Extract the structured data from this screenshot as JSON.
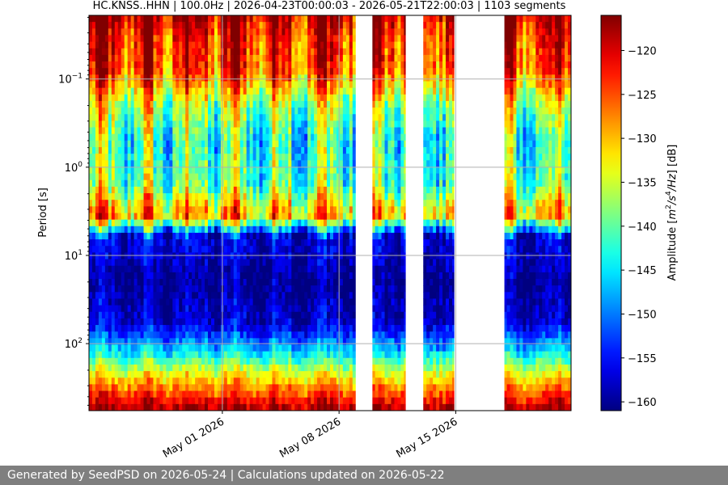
{
  "chart_data": {
    "type": "heatmap",
    "title": "HC.KNSS..HHN | 100.0Hz | 2026-04-23T00:00:03 - 2026-05-21T22:00:03 | 1103 segments",
    "xlabel": "",
    "ylabel": "Period [s]",
    "colorbar_label_parts": [
      "Amplitude [",
      "m",
      "2",
      "/s",
      "4",
      "/",
      "Hz",
      "] [dB]"
    ],
    "x_range": [
      "2026-04-23T00:00:03",
      "2026-05-21T22:00:03"
    ],
    "x_ticks": [
      "May 01 2026",
      "May 08 2026",
      "May 15 2026"
    ],
    "x_tick_dates": [
      "2026-05-01",
      "2026-05-08",
      "2026-05-15"
    ],
    "y_scale": "log",
    "y_inverted": true,
    "y_range": [
      0.019,
      575
    ],
    "y_ticks": [
      {
        "value": 0.1,
        "base": "10",
        "exp": "−1"
      },
      {
        "value": 1,
        "base": "10",
        "exp": "0"
      },
      {
        "value": 10,
        "base": "10",
        "exp": "1"
      },
      {
        "value": 100,
        "base": "10",
        "exp": "2"
      }
    ],
    "colorbar_range": [
      -161,
      -116
    ],
    "colorbar_ticks": [
      -120,
      -125,
      -130,
      -135,
      -140,
      -145,
      -150,
      -155,
      -160
    ],
    "colormap": "jet",
    "grid": true,
    "data_gaps": [
      [
        "2026-05-09T00:00:00",
        "2026-05-10T00:00:00"
      ],
      [
        "2026-05-12T00:00:00",
        "2026-05-13T01:00:00"
      ],
      [
        "2026-05-14T22:00:00",
        "2026-05-17T22:00:00"
      ]
    ],
    "amplitude_profile": [
      {
        "period": 0.019,
        "db": -118
      },
      {
        "period": 0.035,
        "db": -122
      },
      {
        "period": 0.08,
        "db": -124
      },
      {
        "period": 0.2,
        "db": -136
      },
      {
        "period": 0.5,
        "db": -142
      },
      {
        "period": 1.5,
        "db": -140
      },
      {
        "period": 3.5,
        "db": -128
      },
      {
        "period": 6,
        "db": -156
      },
      {
        "period": 20,
        "db": -160
      },
      {
        "period": 60,
        "db": -157
      },
      {
        "period": 120,
        "db": -146
      },
      {
        "period": 200,
        "db": -135
      },
      {
        "period": 300,
        "db": -128
      },
      {
        "period": 575,
        "db": -117
      }
    ]
  },
  "footer": {
    "text": "Generated by SeedPSD on 2026-05-24 | Calculations updated on 2026-05-22"
  }
}
